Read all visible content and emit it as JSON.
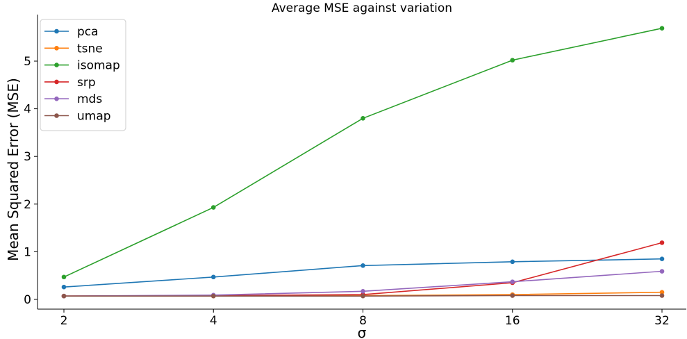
{
  "chart_data": {
    "type": "line",
    "title": "Average MSE against variation",
    "xlabel": "σ",
    "ylabel": "Mean Squared Error (MSE)",
    "x": [
      2,
      4,
      8,
      16,
      32
    ],
    "x_scale": "log2",
    "x_tick_labels": [
      "2",
      "4",
      "8",
      "16",
      "32"
    ],
    "ylim": [
      -0.2,
      5.9
    ],
    "y_ticks": [
      0,
      1,
      2,
      3,
      4,
      5
    ],
    "y_tick_labels": [
      "0",
      "1",
      "2",
      "3",
      "4",
      "5"
    ],
    "grid": false,
    "legend_position": "upper-left",
    "series": [
      {
        "name": "pca",
        "color": "#1f77b4",
        "values": [
          0.26,
          0.47,
          0.71,
          0.79,
          0.85
        ]
      },
      {
        "name": "tsne",
        "color": "#ff7f0e",
        "values": [
          0.07,
          0.07,
          0.08,
          0.1,
          0.15
        ]
      },
      {
        "name": "isomap",
        "color": "#2ca02c",
        "values": [
          0.47,
          1.93,
          3.8,
          5.02,
          5.69
        ]
      },
      {
        "name": "srp",
        "color": "#d62728",
        "values": [
          0.07,
          0.08,
          0.1,
          0.35,
          1.19
        ]
      },
      {
        "name": "mds",
        "color": "#9467bd",
        "values": [
          0.07,
          0.09,
          0.17,
          0.37,
          0.59
        ]
      },
      {
        "name": "umap",
        "color": "#8c564b",
        "values": [
          0.07,
          0.07,
          0.07,
          0.08,
          0.08
        ]
      }
    ]
  }
}
